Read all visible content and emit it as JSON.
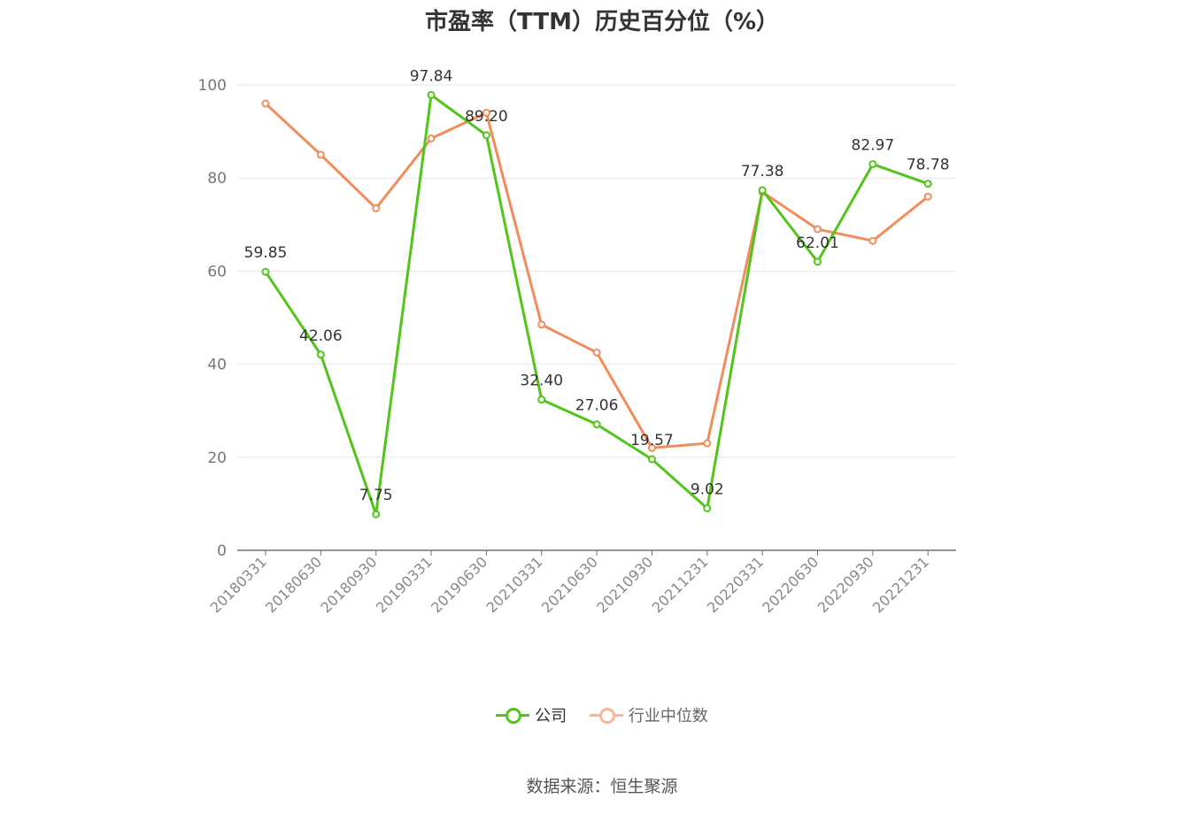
{
  "chart_data": {
    "type": "line",
    "title": "市盈率（TTM）历史百分位（%）",
    "categories": [
      "20180331",
      "20180630",
      "20180930",
      "20190331",
      "20190630",
      "20210331",
      "20210630",
      "20210930",
      "20211231",
      "20220331",
      "20220630",
      "20220930",
      "20221231"
    ],
    "ylim": [
      0,
      100
    ],
    "yticks": [
      0,
      20,
      40,
      60,
      80,
      100
    ],
    "grid": true,
    "legend_position": "bottom-center",
    "series": [
      {
        "name": "公司",
        "color": "#52c41a",
        "values": [
          59.85,
          42.06,
          7.75,
          97.84,
          89.2,
          32.4,
          27.06,
          19.57,
          9.02,
          77.38,
          62.01,
          82.97,
          78.78
        ],
        "labels": [
          "59.85",
          "42.06",
          "7.75",
          "97.84",
          "89.20",
          "32.40",
          "27.06",
          "19.57",
          "9.02",
          "77.38",
          "62.01",
          "82.97",
          "78.78"
        ]
      },
      {
        "name": "行业中位数",
        "color": "#f28c5a",
        "values": [
          96.0,
          85.0,
          73.5,
          88.5,
          94.0,
          48.5,
          42.5,
          22.0,
          23.0,
          77.0,
          69.0,
          66.5,
          76.0
        ]
      }
    ]
  },
  "source_text": "数据来源：恒生聚源"
}
